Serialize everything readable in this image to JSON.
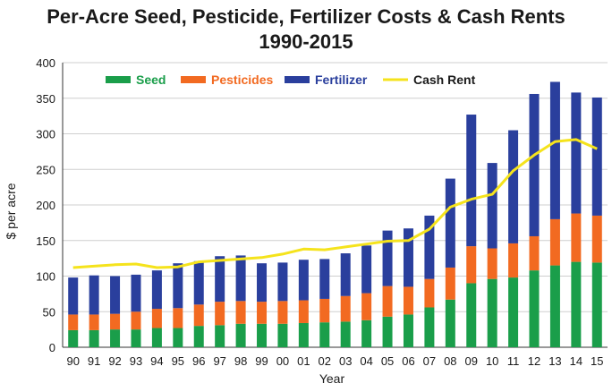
{
  "chart_data": {
    "type": "bar",
    "stacked": true,
    "title": "Per-Acre Seed, Pesticide, Fertilizer Costs & Cash Rents",
    "subtitle": "1990-2015",
    "xlabel": "Year",
    "ylabel": "$ per acre",
    "ylim": [
      0,
      400
    ],
    "yticks": [
      0,
      50,
      100,
      150,
      200,
      250,
      300,
      350,
      400
    ],
    "categories": [
      "90",
      "91",
      "92",
      "93",
      "94",
      "95",
      "96",
      "97",
      "98",
      "99",
      "00",
      "01",
      "02",
      "03",
      "04",
      "05",
      "06",
      "07",
      "08",
      "09",
      "10",
      "11",
      "12",
      "13",
      "14",
      "15"
    ],
    "series": [
      {
        "name": "Seed",
        "type": "bar",
        "color": "#1a9e4a",
        "values": [
          24,
          24,
          25,
          25,
          27,
          27,
          30,
          31,
          33,
          33,
          33,
          34,
          35,
          36,
          38,
          43,
          46,
          56,
          67,
          90,
          96,
          98,
          108,
          115,
          120,
          119
        ]
      },
      {
        "name": "Pesticides",
        "type": "bar",
        "color": "#f26a21",
        "values": [
          22,
          22,
          22,
          25,
          27,
          28,
          30,
          33,
          32,
          31,
          32,
          32,
          33,
          36,
          38,
          43,
          39,
          40,
          45,
          52,
          43,
          48,
          48,
          65,
          68,
          66
        ]
      },
      {
        "name": "Fertilizer",
        "type": "bar",
        "color": "#2a3f9d",
        "values": [
          52,
          55,
          53,
          52,
          54,
          63,
          61,
          64,
          64,
          54,
          54,
          57,
          56,
          60,
          67,
          78,
          82,
          89,
          125,
          185,
          120,
          159,
          200,
          193,
          170,
          166
        ]
      },
      {
        "name": "Cash Rent",
        "type": "line",
        "color": "#f5e31c",
        "values": [
          112,
          114,
          116,
          117,
          112,
          113,
          120,
          122,
          124,
          126,
          131,
          138,
          137,
          141,
          145,
          149,
          150,
          166,
          197,
          208,
          215,
          248,
          270,
          289,
          292,
          279
        ]
      }
    ],
    "legend_position": "top"
  }
}
